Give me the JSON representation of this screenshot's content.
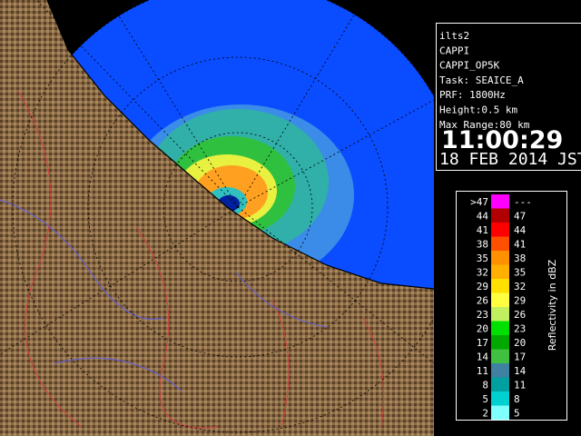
{
  "info_panel": {
    "lines": [
      "ilts2",
      "CAPPI",
      "CAPPI_OP5K",
      "Task: SEAICE_A",
      "PRF: 1800Hz",
      "Height:0.5 km",
      "Max Range:80 km"
    ],
    "time": "11:00:29",
    "date": "18 FEB 2014 JST"
  },
  "legend": {
    "title": "Reflectivity in dBZ",
    "rows": [
      {
        "low": ">47",
        "high": "---",
        "color": "#ff00ff"
      },
      {
        "low": "44",
        "high": "47",
        "color": "#b00000"
      },
      {
        "low": "41",
        "high": "44",
        "color": "#ff0000"
      },
      {
        "low": "38",
        "high": "41",
        "color": "#ff5000"
      },
      {
        "low": "35",
        "high": "38",
        "color": "#ff9000"
      },
      {
        "low": "32",
        "high": "35",
        "color": "#ffb000"
      },
      {
        "low": "29",
        "high": "32",
        "color": "#ffe000"
      },
      {
        "low": "26",
        "high": "29",
        "color": "#ffff40"
      },
      {
        "low": "23",
        "high": "26",
        "color": "#c0f060"
      },
      {
        "low": "20",
        "high": "23",
        "color": "#00e000"
      },
      {
        "low": "17",
        "high": "20",
        "color": "#00a800"
      },
      {
        "low": "14",
        "high": "17",
        "color": "#40c040"
      },
      {
        "low": "11",
        "high": "14",
        "color": "#4080a0"
      },
      {
        "low": "8",
        "high": "11",
        "color": "#00a0a0"
      },
      {
        "low": "5",
        "high": "8",
        "color": "#00d0d0"
      },
      {
        "low": "2",
        "high": "5",
        "color": "#80ffff"
      }
    ]
  }
}
